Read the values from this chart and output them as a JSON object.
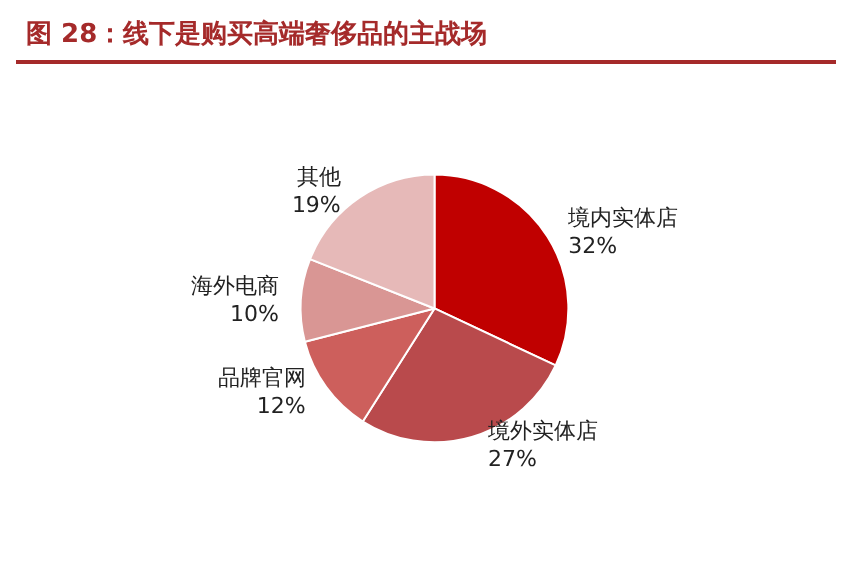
{
  "chart_data": {
    "type": "pie",
    "title": "图 28：线下是购买高端奢侈品的主战场",
    "categories": [
      "境内实体店",
      "境外实体店",
      "品牌官网",
      "海外电商",
      "其他"
    ],
    "values": [
      32,
      27,
      12,
      10,
      19
    ],
    "value_labels": [
      "32%",
      "27%",
      "12%",
      "10%",
      "19%"
    ],
    "colors": [
      "#c00000",
      "#b94a4c",
      "#cd5f5c",
      "#d99694",
      "#e6b9b8"
    ]
  }
}
